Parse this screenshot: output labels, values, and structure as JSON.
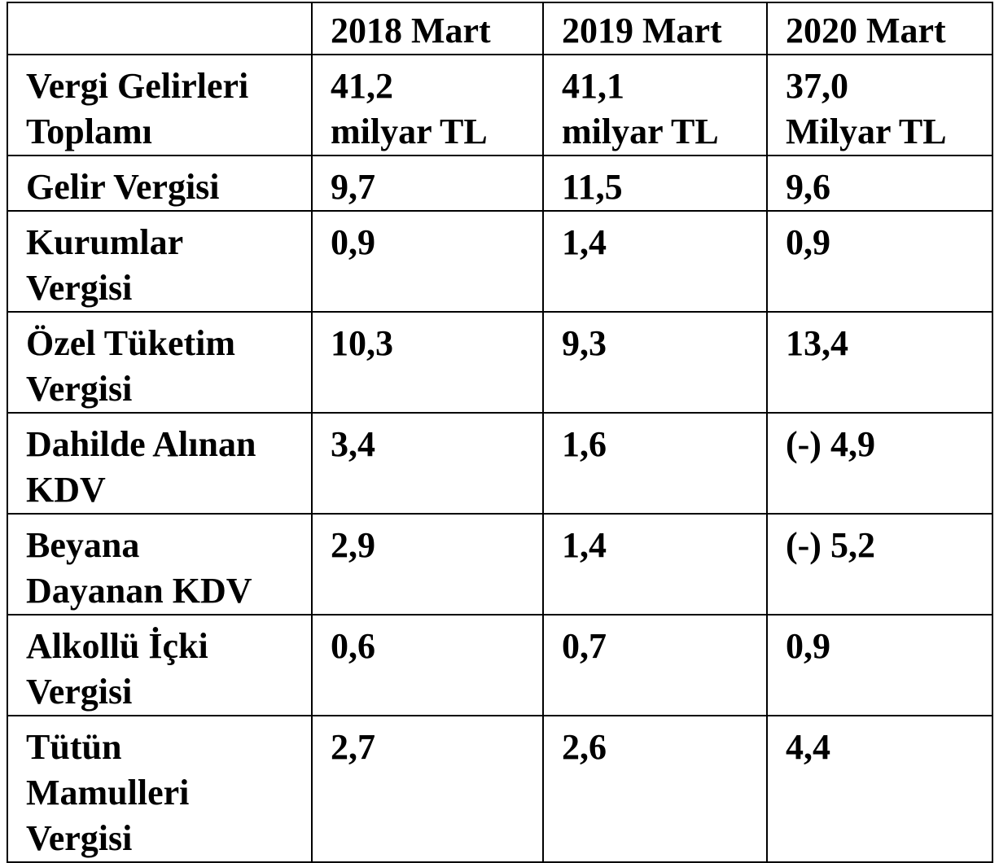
{
  "table": {
    "header": {
      "empty": "",
      "col_2018": "2018 Mart",
      "col_2019": "2019 Mart",
      "col_2020": "2020 Mart"
    },
    "rows": [
      {
        "label_lines": [
          "Vergi Gelirleri",
          "Toplamı"
        ],
        "v2018": [
          "41,2",
          "milyar TL"
        ],
        "v2019": [
          "41,1",
          "milyar TL"
        ],
        "v2020": [
          "37,0",
          "Milyar TL"
        ]
      },
      {
        "label_lines": [
          "Gelir Vergisi"
        ],
        "v2018": [
          "9,7"
        ],
        "v2019": [
          "11,5"
        ],
        "v2020": [
          "9,6"
        ]
      },
      {
        "label_lines": [
          "Kurumlar",
          "Vergisi"
        ],
        "v2018": [
          "0,9"
        ],
        "v2019": [
          "1,4"
        ],
        "v2020": [
          "0,9"
        ]
      },
      {
        "label_lines": [
          "Özel Tüketim",
          "Vergisi"
        ],
        "v2018": [
          "10,3"
        ],
        "v2019": [
          "9,3"
        ],
        "v2020": [
          "13,4"
        ]
      },
      {
        "label_lines": [
          "Dahilde Alınan",
          "KDV"
        ],
        "v2018": [
          "3,4"
        ],
        "v2019": [
          "1,6"
        ],
        "v2020": [
          "(-) 4,9"
        ]
      },
      {
        "label_lines": [
          "Beyana",
          "Dayanan KDV"
        ],
        "v2018": [
          "2,9"
        ],
        "v2019": [
          "1,4"
        ],
        "v2020": [
          "(-) 5,2"
        ]
      },
      {
        "label_lines": [
          "Alkollü İçki",
          "Vergisi"
        ],
        "v2018": [
          "0,6"
        ],
        "v2019": [
          "0,7"
        ],
        "v2020": [
          "0,9"
        ]
      },
      {
        "label_lines": [
          "Tütün",
          "Mamulleri",
          "Vergisi"
        ],
        "v2018": [
          "2,7"
        ],
        "v2019": [
          "2,6"
        ],
        "v2020": [
          "4,4"
        ]
      }
    ]
  }
}
